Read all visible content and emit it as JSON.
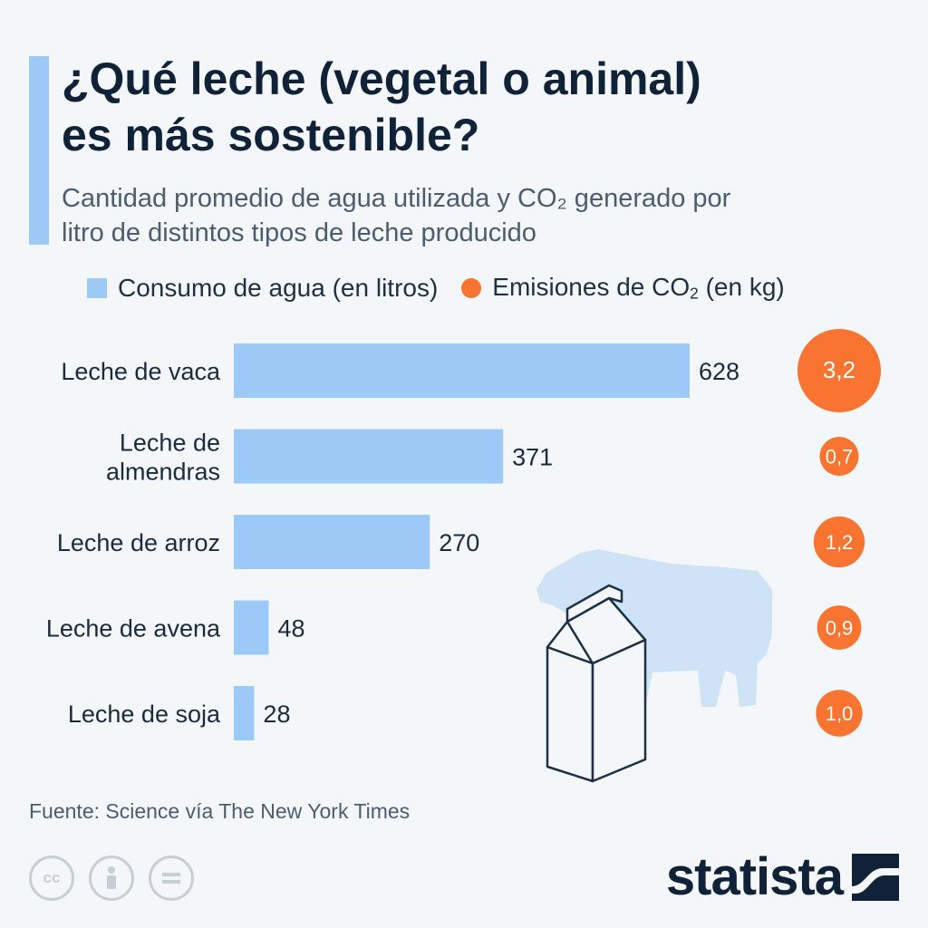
{
  "title_lines": [
    "¿Qué leche (vegetal o animal)",
    "es más sostenible?"
  ],
  "subtitle_lines": [
    "Cantidad promedio de agua utilizada y CO₂ generado por",
    "litro de distintos tipos de leche producido"
  ],
  "legend": {
    "water": "Consumo de agua (en litros)",
    "co2_prefix": "Emisiones de CO",
    "co2_sub": "2",
    "co2_suffix": " (en kg)"
  },
  "colors": {
    "water": "#9cc9f5",
    "co2": "#f97431",
    "text": "#1a2b3d",
    "accent": "#9cc9f5"
  },
  "chart_data": {
    "type": "bar",
    "orientation": "horizontal",
    "categories": [
      "Leche de vaca",
      "Leche de almendras",
      "Leche de arroz",
      "Leche de avena",
      "Leche de soja"
    ],
    "category_lines": [
      [
        "Leche de vaca"
      ],
      [
        "Leche de",
        "almendras"
      ],
      [
        "Leche de arroz"
      ],
      [
        "Leche de avena"
      ],
      [
        "Leche de soja"
      ]
    ],
    "series": [
      {
        "name": "Consumo de agua (en litros)",
        "values": [
          628,
          371,
          270,
          48,
          28
        ]
      },
      {
        "name": "Emisiones de CO₂ (en kg)",
        "values": [
          3.2,
          0.7,
          1.2,
          0.9,
          1.0
        ],
        "labels": [
          "3,2",
          "0,7",
          "1,2",
          "0,9",
          "1,0"
        ]
      }
    ],
    "xlim": [
      0,
      628
    ]
  },
  "source": "Fuente: Science vía The New York Times",
  "license_icons": [
    "cc-icon",
    "attribution-icon",
    "no-derivatives-icon"
  ],
  "brand": "statista"
}
